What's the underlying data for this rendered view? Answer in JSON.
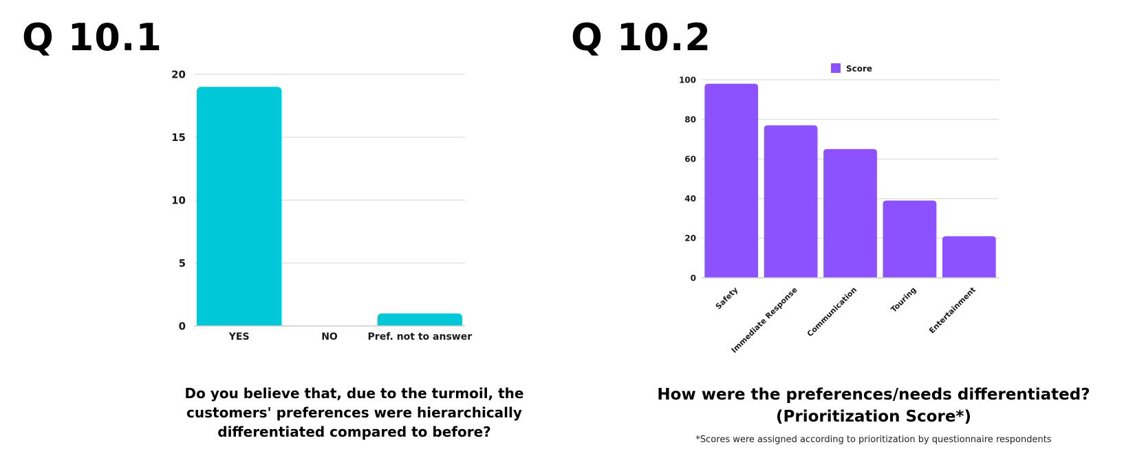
{
  "panels": [
    {
      "title": "Q 10.1",
      "question": "Do you believe that, due to the turmoil, the customers' preferences were hierarchically differentiated compared to before?"
    },
    {
      "title": "Q 10.2",
      "question_line1": "How were the preferences/needs differentiated?",
      "question_line2": "(Prioritization Score*)",
      "footnote": "*Scores were assigned according to prioritization  by questionnaire respondents"
    }
  ],
  "chart_data": [
    {
      "type": "bar",
      "categories": [
        "YES",
        "NO",
        "Pref. not to answer"
      ],
      "values": [
        19,
        0,
        1
      ],
      "ylim": [
        0,
        20
      ],
      "yticks": [
        0,
        5,
        10,
        15,
        20
      ],
      "grid": true,
      "color": "#00c8d8",
      "title": "",
      "xlabel": "",
      "ylabel": ""
    },
    {
      "type": "bar",
      "categories": [
        "Safety",
        "Immediate Response",
        "Communication",
        "Touring",
        "Entertainment"
      ],
      "series": [
        {
          "name": "Score",
          "values": [
            98,
            77,
            65,
            39,
            21
          ]
        }
      ],
      "ylim": [
        0,
        100
      ],
      "yticks": [
        0,
        20,
        40,
        60,
        80,
        100
      ],
      "grid": true,
      "legend": "top-center",
      "color": "#8c52ff",
      "title": "",
      "xlabel": "",
      "ylabel": ""
    }
  ]
}
